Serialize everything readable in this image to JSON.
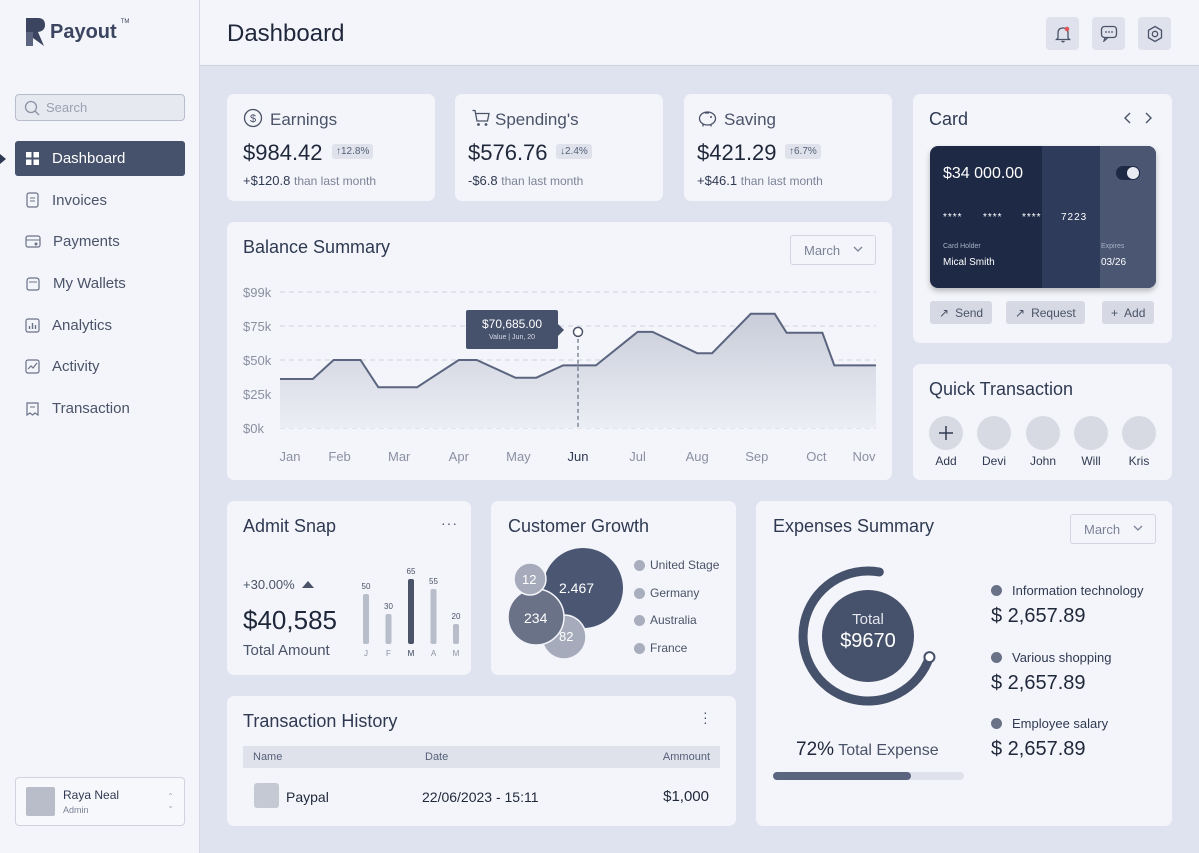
{
  "app": {
    "name": "Payout",
    "tm": "TM"
  },
  "search": {
    "placeholder": "Search"
  },
  "nav": [
    {
      "label": "Dashboard",
      "icon": "grid-icon"
    },
    {
      "label": "Invoices",
      "icon": "document-icon"
    },
    {
      "label": "Payments",
      "icon": "payment-icon"
    },
    {
      "label": "My Wallets",
      "icon": "wallet-icon"
    },
    {
      "label": "Analytics",
      "icon": "analytics-icon"
    },
    {
      "label": "Activity",
      "icon": "activity-icon"
    },
    {
      "label": "Transaction",
      "icon": "transaction-icon"
    }
  ],
  "user": {
    "name": "Raya Neal",
    "role": "Admin"
  },
  "header": {
    "title": "Dashboard"
  },
  "stats": [
    {
      "label": "Earnings",
      "value": "$984.42",
      "badge": "12.8%",
      "direction": "up",
      "delta": "+$120.8",
      "delta_text": "than last month"
    },
    {
      "label": "Spending's",
      "value": "$576.76",
      "badge": "2.4%",
      "direction": "down",
      "delta": "-$6.8",
      "delta_text": "than last month"
    },
    {
      "label": "Saving",
      "value": "$421.29",
      "badge": "6.7%",
      "direction": "up",
      "delta": "+$46.1",
      "delta_text": "than last month"
    }
  ],
  "balance": {
    "title": "Balance Summary",
    "month": "March",
    "tooltip_value": "$70,685.00",
    "tooltip_sub": "Value | Jun, 20"
  },
  "chart_data": {
    "type": "area",
    "title": "Balance Summary",
    "categories": [
      "Jan",
      "Feb",
      "Mar",
      "Apr",
      "May",
      "Jun",
      "Jul",
      "Aug",
      "Sep",
      "Oct",
      "Nov"
    ],
    "y_ticks": [
      "$0k",
      "$25k",
      "$50k",
      "$75k",
      "$99k"
    ],
    "ylim": [
      0,
      100000
    ],
    "x": [
      0,
      0.55,
      0.9,
      1.35,
      1.65,
      2.3,
      3.0,
      3.3,
      3.95,
      4.3,
      4.75,
      5.3,
      6.0,
      6.25,
      7.0,
      7.25,
      7.9,
      8.3,
      8.5,
      9.1,
      9.3,
      10.0
    ],
    "values": [
      36000,
      36000,
      50000,
      50000,
      30000,
      30000,
      50000,
      50000,
      37000,
      37000,
      46000,
      46000,
      70685,
      70685,
      55000,
      55000,
      84000,
      84000,
      70000,
      70000,
      46000,
      46000
    ],
    "highlight": {
      "category": "Jun",
      "value": 70685
    }
  },
  "card": {
    "title": "Card",
    "amount": "$34 000.00",
    "digits": [
      "****",
      "****",
      "****",
      "7223"
    ],
    "holder_label": "Card Holder",
    "holder": "Mical Smith",
    "expires_label": "Expires",
    "expires": "03/26",
    "send": "Send",
    "request": "Request",
    "add": "Add"
  },
  "quick": {
    "title": "Quick Transaction",
    "items": [
      "Add",
      "Devi",
      "John",
      "Will",
      "Kris"
    ]
  },
  "snap": {
    "title": "Admit Snap",
    "percent": "+30.00%",
    "amount": "$40,585",
    "amount_label": "Total Amount",
    "bars": [
      {
        "month": "J",
        "value": 50
      },
      {
        "month": "F",
        "value": 30
      },
      {
        "month": "M",
        "value": 65,
        "highlight": true
      },
      {
        "month": "A",
        "value": 55
      },
      {
        "month": "M",
        "value": 20
      }
    ]
  },
  "growth": {
    "title": "Customer Growth",
    "bubbles": [
      "2.467",
      "12",
      "234",
      "82"
    ],
    "legend": [
      "United Stage",
      "Germany",
      "Australia",
      "France"
    ]
  },
  "expenses": {
    "title": "Expenses Summary",
    "month": "March",
    "total_label": "Total",
    "total_value": "$9670",
    "percent": "72%",
    "percent_label": "Total Expense",
    "progress": 0.72,
    "items": [
      {
        "label": "Information technology",
        "value": "$ 2,657.89"
      },
      {
        "label": "Various shopping",
        "value": "$ 2,657.89"
      },
      {
        "label": "Employee salary",
        "value": "$ 2,657.89"
      }
    ]
  },
  "history": {
    "title": "Transaction History",
    "columns": [
      "Name",
      "Date",
      "Ammount"
    ],
    "rows": [
      {
        "name": "Paypal",
        "date": "22/06/2023 - 15:11",
        "amount": "$1,000"
      }
    ]
  }
}
